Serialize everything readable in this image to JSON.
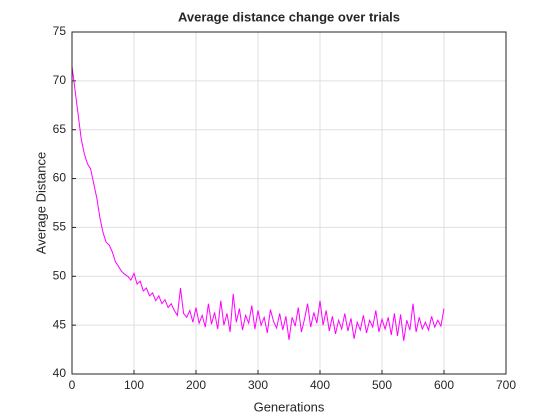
{
  "chart_data": {
    "type": "line",
    "title": "Average distance change over trials",
    "xlabel": "Generations",
    "ylabel": "Average Distance",
    "color": "#ff00ff",
    "grid": true,
    "x": [
      0,
      5,
      10,
      15,
      20,
      25,
      30,
      35,
      40,
      45,
      50,
      55,
      60,
      65,
      70,
      75,
      80,
      85,
      90,
      95,
      100,
      105,
      110,
      115,
      120,
      125,
      130,
      135,
      140,
      145,
      150,
      155,
      160,
      165,
      170,
      175,
      180,
      185,
      190,
      195,
      200,
      205,
      210,
      215,
      220,
      225,
      230,
      235,
      240,
      245,
      250,
      255,
      260,
      265,
      270,
      275,
      280,
      285,
      290,
      295,
      300,
      305,
      310,
      315,
      320,
      325,
      330,
      335,
      340,
      345,
      350,
      355,
      360,
      365,
      370,
      375,
      380,
      385,
      390,
      395,
      400,
      405,
      410,
      415,
      420,
      425,
      430,
      435,
      440,
      445,
      450,
      455,
      460,
      465,
      470,
      475,
      480,
      485,
      490,
      495,
      500,
      505,
      510,
      515,
      520,
      525,
      530,
      535,
      540,
      545,
      550,
      555,
      560,
      565,
      570,
      575,
      580,
      585,
      590,
      595,
      600
    ],
    "values": [
      71.5,
      69,
      66.5,
      64,
      62.5,
      61.5,
      61,
      59.5,
      58,
      56,
      54.5,
      53.5,
      53.2,
      52.5,
      51.5,
      51,
      50.5,
      50.2,
      50,
      49.6,
      50.3,
      49.2,
      49.5,
      48.5,
      48.8,
      48,
      48.3,
      47.5,
      48,
      47.2,
      47.6,
      46.8,
      47.2,
      46.5,
      46,
      48.8,
      46.2,
      45.8,
      46.5,
      45.3,
      46.8,
      45.2,
      46,
      44.8,
      47.2,
      45.1,
      46.3,
      44.6,
      47.5,
      45,
      46.2,
      44.3,
      48.2,
      45.3,
      46.7,
      44.5,
      46,
      45.2,
      47,
      44.6,
      46.5,
      45,
      45.8,
      44.2,
      46.6,
      45.4,
      44.7,
      46.2,
      44.5,
      45.9,
      43.5,
      45.8,
      44.9,
      46.8,
      44.3,
      45.6,
      47.2,
      44.8,
      46.3,
      45.2,
      47.5,
      45,
      46.5,
      44.4,
      45.9,
      44.1,
      45.5,
      44.6,
      46.2,
      44.4,
      45.7,
      43.6,
      45.3,
      44.5,
      46,
      44.2,
      45.5,
      44.8,
      46.5,
      44.3,
      45.6,
      44.6,
      45.8,
      44,
      46.2,
      43.9,
      46.1,
      43.4,
      45.5,
      44.5,
      47.2,
      44.3,
      45.8,
      44.6,
      45.3,
      44.5,
      45.9,
      44.8,
      45.5,
      44.9,
      46.7
    ],
    "xlim": [
      0,
      700
    ],
    "xticks": [
      0,
      100,
      200,
      300,
      400,
      500,
      600,
      700
    ],
    "ylim": [
      40,
      75
    ],
    "yticks": [
      40,
      45,
      50,
      55,
      60,
      65,
      70,
      75
    ]
  }
}
